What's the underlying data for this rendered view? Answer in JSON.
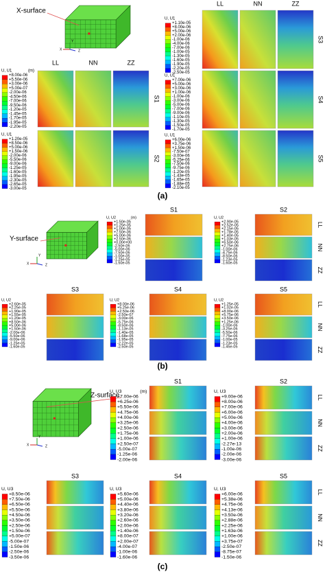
{
  "panels": [
    {
      "label": "(a)",
      "surface": "X-surface",
      "axes": [
        "X",
        "Y",
        "Z"
      ],
      "columns": [
        "LL",
        "NN",
        "ZZ"
      ],
      "legends": [
        {
          "case": "S1",
          "title": "U, U1",
          "unit": "(m)",
          "labels": [
            "+8.00e-06",
            "+5.50e-06",
            "+3.00e-06",
            "+5.00e-07",
            "-2.00e-06",
            "-4.50e-06",
            "-7.00e-06",
            "-9.50e-06",
            "-1.20e-05",
            "-1.45e-05",
            "-1.70e-05",
            "-1.95e-05",
            "-2.20e-05"
          ]
        },
        {
          "case": "S2",
          "title": "U, U1",
          "labels": [
            "+1.20e-05",
            "+8.50e-06",
            "+5.00e-06",
            "+1.50e-06",
            "-2.00e-06",
            "-5.50e-06",
            "-9.00e-06",
            "-1.25e-05",
            "-1.60e-05",
            "-1.95e-05",
            "-2.30e-05",
            "-2.65e-05",
            "-3.00e-05"
          ]
        },
        {
          "case": "S3",
          "title": "U, U1",
          "labels": [
            "+1.10e-05",
            "+8.00e-06",
            "+5.00e-06",
            "+2.00e-06",
            "-1.00e-06",
            "-4.00e-06",
            "-7.00e-06",
            "-1.00e-05",
            "-1.30e-05",
            "-1.60e-05",
            "-1.90e-05",
            "-2.20e-05",
            "-2.50e-05"
          ]
        },
        {
          "case": "S4",
          "title": "U, U1",
          "labels": [
            "+7.00e-06",
            "+5.00e-06",
            "+3.00e-06",
            "+1.00e-06",
            "-1.00e-06",
            "-3.00e-06",
            "-5.00e-06",
            "-7.00e-06",
            "-9.00e-06",
            "-1.10e-05",
            "-1.30e-05",
            "-1.50e-05",
            "-1.70e-05"
          ]
        },
        {
          "case": "S5",
          "title": "U, U1",
          "labels": [
            "+6.00e-06",
            "+3.75e-06",
            "+1.50e-06",
            "-7.50e-07",
            "-3.00e-06",
            "-5.25e-06",
            "-7.50e-06",
            "-9.75e-06",
            "-1.20e-05",
            "-1.43e-05",
            "-1.65e-05",
            "-1.88e-05",
            "-2.10e-05"
          ]
        }
      ]
    },
    {
      "label": "(b)",
      "surface": "Y-surface",
      "axes": [
        "X",
        "Y",
        "Z"
      ],
      "columns": [
        "LL",
        "NN",
        "ZZ"
      ],
      "legends": [
        {
          "case": "S1",
          "title": "U, U2",
          "unit": "(m)",
          "labels": [
            "+1.50e-05",
            "+1.25e-05",
            "+1.00e-05",
            "+7.50e-06",
            "+5.00e-06",
            "+2.50e-06",
            "+0.00e+00",
            "-2.50e-06",
            "-5.00e-06",
            "-7.50e-06",
            "-1.00e-05",
            "-1.25e-05",
            "-1.50e-05"
          ]
        },
        {
          "case": "S2",
          "title": "U, U2",
          "labels": [
            "+2.90e-05",
            "+2.52e-05",
            "+2.15e-05",
            "+1.78e-05",
            "+1.40e-05",
            "+1.03e-05",
            "+6.50e-06",
            "+2.75e-06",
            "-1.00e-06",
            "-4.75e-06",
            "-8.50e-06",
            "-1.23e-05",
            "-1.60e-05"
          ]
        },
        {
          "case": "S3",
          "title": "U, U2",
          "labels": [
            "+2.60e-05",
            "+2.25e-05",
            "+1.90e-05",
            "+1.55e-05",
            "+1.20e-05",
            "+8.50e-06",
            "+5.00e-06",
            "+1.50e-06",
            "-2.00e-06",
            "-5.50e-06",
            "-9.00e-06",
            "-1.25e-05",
            "-1.60e-05"
          ]
        },
        {
          "case": "S4",
          "title": "U, U2",
          "labels": [
            "+8.00e-06",
            "+5.25e-06",
            "+2.50e-06",
            "-2.50e-07",
            "-3.00e-06",
            "-5.75e-06",
            "-8.50e-06",
            "-1.13e-05",
            "-1.40e-05",
            "-1.68e-05",
            "-1.95e-05",
            "-2.22e-05",
            "-2.50e-05"
          ]
        },
        {
          "case": "S5",
          "title": "U, U2",
          "labels": [
            "+1.25e-05",
            "+1.02e-05",
            "+8.00e-06",
            "+5.75e-06",
            "+3.50e-06",
            "+1.25e-06",
            "-1.00e-06",
            "-3.25e-06",
            "-5.50e-06",
            "-7.75e-06",
            "-1.00e-05",
            "-1.23e-05",
            "-1.45e-05"
          ]
        }
      ]
    },
    {
      "label": "(c)",
      "surface": "Z-surface",
      "axes": [
        "X",
        "Y",
        "Z"
      ],
      "columns": [
        "LL",
        "NN",
        "ZZ"
      ],
      "legends": [
        {
          "case": "S1",
          "title": "U, U3",
          "unit": "(m)",
          "labels": [
            "+7.00e-06",
            "+6.25e-06",
            "+5.50e-06",
            "+4.75e-06",
            "+4.00e-06",
            "+3.25e-06",
            "+2.50e-06",
            "+1.75e-06",
            "+1.00e-06",
            "+2.50e-07",
            "-5.00e-07",
            "-1.25e-06",
            "-2.00e-06"
          ]
        },
        {
          "case": "S2",
          "title": "U, U3",
          "labels": [
            "+9.00e-06",
            "+8.00e-06",
            "+7.00e-06",
            "+6.00e-06",
            "+5.00e-06",
            "+4.00e-06",
            "+3.00e-06",
            "+2.00e-06",
            "+1.00e-06",
            "-2.27e-13",
            "-1.00e-06",
            "-2.00e-06",
            "-3.00e-06"
          ]
        },
        {
          "case": "S3",
          "title": "U, U3",
          "labels": [
            "+8.50e-06",
            "+7.50e-06",
            "+6.50e-06",
            "+5.50e-06",
            "+4.50e-06",
            "+3.50e-06",
            "+2.50e-06",
            "+1.50e-06",
            "+5.00e-07",
            "-5.00e-07",
            "-1.50e-06",
            "-2.50e-06",
            "-3.50e-06"
          ]
        },
        {
          "case": "S4",
          "title": "U, U3",
          "labels": [
            "+5.60e-06",
            "+5.00e-06",
            "+4.40e-06",
            "+3.80e-06",
            "+3.20e-06",
            "+2.60e-06",
            "+2.00e-06",
            "+1.40e-06",
            "+8.00e-07",
            "+2.00e-07",
            "-4.00e-07",
            "-1.00e-06",
            "-1.60e-06"
          ]
        },
        {
          "case": "S5",
          "title": "U, U3",
          "labels": [
            "+6.00e-06",
            "+5.38e-06",
            "+4.75e-06",
            "+4.13e-06",
            "+3.50e-06",
            "+2.88e-06",
            "+2.25e-06",
            "+1.63e-06",
            "+1.00e-06",
            "+3.75e-07",
            "-2.50e-07",
            "-8.75e-07",
            "-1.50e-06"
          ]
        }
      ]
    }
  ]
}
